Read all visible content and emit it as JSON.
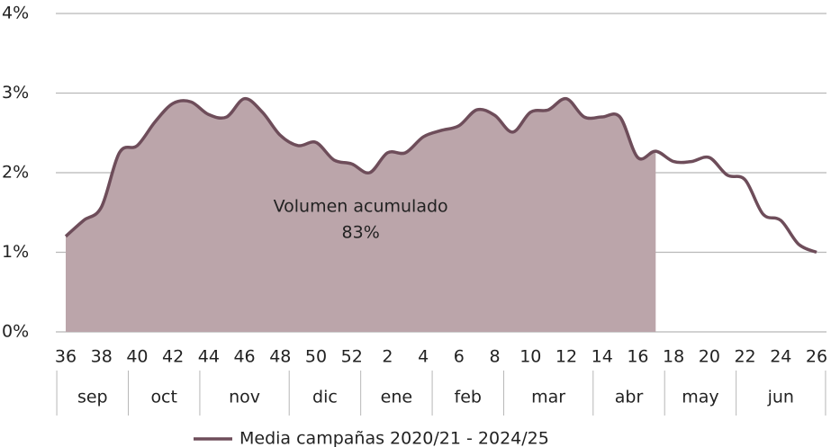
{
  "chart_data": {
    "type": "line",
    "categories": [
      "36",
      null,
      "38",
      null,
      "40",
      null,
      "42",
      null,
      "44",
      null,
      "46",
      null,
      "48",
      null,
      "50",
      null,
      "52",
      null,
      "2",
      null,
      "4",
      null,
      "6",
      null,
      "8",
      null,
      "10",
      null,
      "12",
      null,
      "14",
      null,
      "16",
      null,
      "18",
      null,
      "20",
      null,
      "22",
      null,
      "24",
      null,
      "26"
    ],
    "months": [
      {
        "label": "sep",
        "weeks": 4
      },
      {
        "label": "oct",
        "weeks": 4
      },
      {
        "label": "nov",
        "weeks": 5
      },
      {
        "label": "dic",
        "weeks": 4
      },
      {
        "label": "ene",
        "weeks": 4
      },
      {
        "label": "feb",
        "weeks": 4
      },
      {
        "label": "mar",
        "weeks": 5
      },
      {
        "label": "abr",
        "weeks": 4
      },
      {
        "label": "may",
        "weeks": 4
      },
      {
        "label": "jun",
        "weeks": 5
      }
    ],
    "series": [
      {
        "name": "Media campañas 2020/21 - 2024/25",
        "color": "#6e4d5a",
        "values": [
          1.2,
          1.4,
          1.57,
          2.25,
          2.34,
          2.64,
          2.87,
          2.89,
          2.73,
          2.7,
          2.93,
          2.76,
          2.47,
          2.34,
          2.38,
          2.16,
          2.11,
          2.0,
          2.25,
          2.25,
          2.45,
          2.53,
          2.59,
          2.79,
          2.72,
          2.51,
          2.76,
          2.79,
          2.93,
          2.7,
          2.7,
          2.7,
          2.19,
          2.27,
          2.14,
          2.14,
          2.19,
          1.97,
          1.91,
          1.48,
          1.4,
          1.1,
          1.0
        ]
      }
    ],
    "area": {
      "color": "#bba5aa",
      "through_index": 33,
      "annotation": [
        "Volumen acumulado",
        "83%"
      ]
    },
    "ylim": [
      0,
      4
    ],
    "yticks": [
      {
        "value": 0,
        "label": "0%"
      },
      {
        "value": 1,
        "label": "1%"
      },
      {
        "value": 2,
        "label": "2%"
      },
      {
        "value": 3,
        "label": "3%"
      },
      {
        "value": 4,
        "label": "4%"
      }
    ],
    "grid": true,
    "legend": "bottom"
  }
}
